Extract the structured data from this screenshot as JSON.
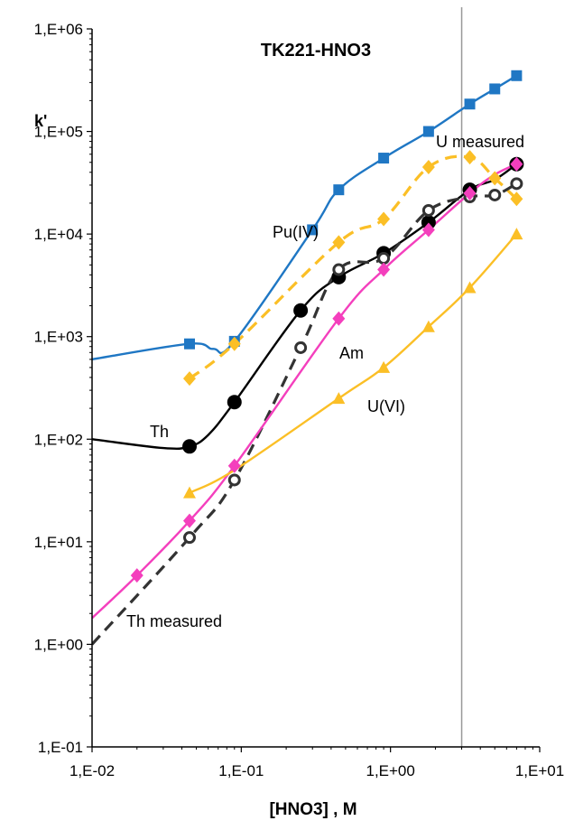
{
  "chart_data": {
    "type": "line",
    "title": "TK221-HNO3",
    "xlabel": "[HNO3] , M",
    "ylabel": "k'",
    "xscale": "log",
    "yscale": "log",
    "xlim": [
      0.01,
      10
    ],
    "ylim": [
      0.1,
      1000000
    ],
    "x_ticks": [
      "1,E-02",
      "1,E-01",
      "1,E+00",
      "1,E+01"
    ],
    "y_ticks": [
      "1,E-01",
      "1,E+00",
      "1,E+01",
      "1,E+02",
      "1,E+03",
      "1,E+04",
      "1,E+05",
      "1,E+06"
    ],
    "grid": false,
    "vertical_line_x": 3.0,
    "annotations": [
      "U measured",
      "Pu(IV)",
      "Am",
      "U(VI)",
      "Th",
      "Th measured"
    ],
    "series": [
      {
        "name": "Pu(IV)",
        "color": "#1f77c4",
        "marker": "square",
        "dashed": false,
        "curve_x": [
          0.01,
          0.045,
          0.065,
          0.09,
          0.3,
          0.45,
          0.9,
          1.8,
          3.4,
          5.0,
          7.0
        ],
        "curve_y": [
          600,
          850,
          760,
          900,
          11000,
          27000,
          55000,
          100000,
          185000,
          260000,
          350000
        ],
        "points_x": [
          0.045,
          0.09,
          0.3,
          0.45,
          0.9,
          1.8,
          3.4,
          5.0,
          7.0
        ],
        "points_y": [
          850,
          900,
          11000,
          27000,
          55000,
          100000,
          185000,
          260000,
          350000
        ]
      },
      {
        "name": "U measured",
        "color": "#fbbf26",
        "marker": "diamond",
        "dashed": true,
        "curve_x": [
          0.045,
          0.09,
          0.45,
          0.9,
          1.8,
          3.4,
          5.0,
          7.0
        ],
        "curve_y": [
          390,
          850,
          8300,
          14000,
          45000,
          56000,
          35000,
          22000
        ],
        "points_x": [
          0.045,
          0.09,
          0.45,
          0.9,
          1.8,
          3.4,
          5.0,
          7.0
        ],
        "points_y": [
          390,
          850,
          8300,
          14000,
          45000,
          56000,
          35000,
          22000
        ]
      },
      {
        "name": "Th",
        "color": "#000000",
        "marker": "circle-filled",
        "dashed": false,
        "curve_x": [
          0.01,
          0.03,
          0.045,
          0.06,
          0.09,
          0.25,
          0.45,
          0.9,
          1.8,
          3.4,
          5.0,
          7.0
        ],
        "curve_y": [
          100,
          82,
          85,
          110,
          230,
          1800,
          3800,
          6500,
          13000,
          27000,
          34000,
          48000
        ],
        "points_x": [
          0.045,
          0.09,
          0.25,
          0.45,
          0.9,
          1.8,
          3.4,
          7.0
        ],
        "points_y": [
          85,
          230,
          1800,
          3800,
          6500,
          13000,
          27000,
          48000
        ]
      },
      {
        "name": "Th measured",
        "color": "#333333",
        "marker": "circle-open",
        "dashed": true,
        "curve_x": [
          0.01,
          0.045,
          0.09,
          0.25,
          0.45,
          0.9,
          1.8,
          3.4,
          5.0,
          7.0
        ],
        "curve_y": [
          1.0,
          11,
          40,
          780,
          4500,
          5800,
          17000,
          23000,
          24000,
          31000
        ],
        "points_x": [
          0.045,
          0.09,
          0.25,
          0.45,
          0.9,
          1.8,
          3.4,
          5.0,
          7.0
        ],
        "points_y": [
          11,
          40,
          780,
          4500,
          5800,
          17000,
          23000,
          24000,
          31000
        ]
      },
      {
        "name": "Am",
        "color": "#f43fbd",
        "marker": "diamond",
        "dashed": false,
        "curve_x": [
          0.01,
          0.02,
          0.045,
          0.09,
          0.45,
          0.9,
          1.8,
          3.4,
          5.0,
          7.0
        ],
        "curve_y": [
          1.8,
          4.7,
          16,
          55,
          1500,
          4500,
          11000,
          25000,
          38000,
          48000
        ],
        "points_x": [
          0.02,
          0.045,
          0.09,
          0.45,
          0.9,
          1.8,
          3.4,
          7.0
        ],
        "points_y": [
          4.7,
          16,
          55,
          1500,
          4500,
          11000,
          25000,
          48000
        ]
      },
      {
        "name": "U(VI)",
        "color": "#fbbf26",
        "marker": "triangle",
        "dashed": false,
        "curve_x": [
          0.045,
          0.09,
          0.45,
          0.9,
          1.8,
          3.4,
          7.0
        ],
        "curve_y": [
          30,
          50,
          250,
          500,
          1250,
          3000,
          10000
        ],
        "points_x": [
          0.045,
          0.45,
          0.9,
          1.8,
          3.4,
          7.0
        ],
        "points_y": [
          30,
          250,
          500,
          1250,
          3000,
          10000
        ]
      }
    ]
  },
  "colors": {
    "axis": "#000000",
    "vline": "#999999",
    "background": "#ffffff"
  }
}
